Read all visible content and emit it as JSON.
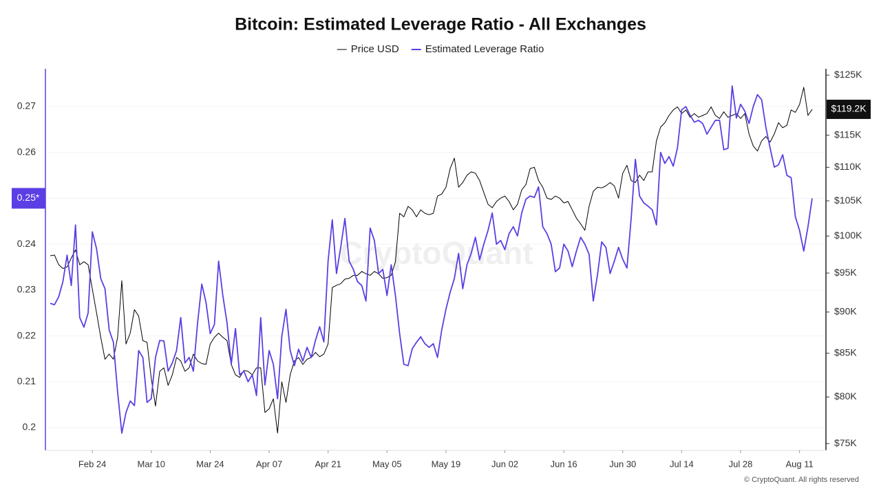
{
  "chart_data": {
    "type": "line",
    "title": "Bitcoin: Estimated Leverage Ratio - All Exchanges",
    "watermark": "CryptoQuant",
    "credit": "© CryptoQuant. All rights reserved",
    "categories": [
      null,
      null,
      null,
      null,
      null,
      null,
      null,
      null,
      null,
      null,
      "Feb 24",
      null,
      null,
      null,
      null,
      null,
      null,
      null,
      null,
      null,
      null,
      null,
      null,
      null,
      "Mar 10",
      null,
      null,
      null,
      null,
      null,
      null,
      null,
      null,
      null,
      null,
      null,
      null,
      null,
      "Mar 24",
      null,
      null,
      null,
      null,
      null,
      null,
      null,
      null,
      null,
      null,
      null,
      null,
      null,
      "Apr 07",
      null,
      null,
      null,
      null,
      null,
      null,
      null,
      null,
      null,
      null,
      null,
      null,
      null,
      "Apr 21",
      null,
      null,
      null,
      null,
      null,
      null,
      null,
      null,
      null,
      null,
      null,
      null,
      null,
      "May 05",
      null,
      null,
      null,
      null,
      null,
      null,
      null,
      null,
      null,
      null,
      null,
      null,
      null,
      "May 19",
      null,
      null,
      null,
      null,
      null,
      null,
      null,
      null,
      null,
      null,
      null,
      null,
      null,
      "Jun 02",
      null,
      null,
      null,
      null,
      null,
      null,
      null,
      null,
      null,
      null,
      null,
      null,
      null,
      "Jun 16",
      null,
      null,
      null,
      null,
      null,
      null,
      null,
      null,
      null,
      null,
      null,
      null,
      null,
      "Jun 30",
      null,
      null,
      null,
      null,
      null,
      null,
      null,
      null,
      null,
      null,
      null,
      null,
      null,
      "Jul 14",
      null,
      null,
      null,
      null,
      null,
      null,
      null,
      null,
      null,
      null,
      null,
      null,
      null,
      "Jul 28",
      null,
      null,
      null,
      null,
      null,
      null,
      null,
      null,
      null,
      null,
      null,
      null,
      null,
      "Aug 11",
      null,
      null,
      null
    ],
    "series": [
      {
        "name": "Price USD",
        "color": "#000000",
        "axis": "y2",
        "current_value": {
          "value": 119200,
          "label": "$119.2K"
        },
        "values": [
          97300,
          97400,
          96100,
          95600,
          95800,
          97000,
          98100,
          96100,
          96500,
          96100,
          92900,
          89900,
          86900,
          84300,
          84900,
          84300,
          86900,
          94000,
          86100,
          87400,
          90300,
          89500,
          86500,
          86300,
          82100,
          79000,
          82900,
          83300,
          81300,
          82500,
          84500,
          84100,
          82900,
          83300,
          84900,
          84100,
          83800,
          83700,
          86100,
          86900,
          87400,
          86900,
          86500,
          83700,
          82500,
          82200,
          83000,
          82900,
          82500,
          83300,
          83300,
          78300,
          78700,
          79800,
          76100,
          81700,
          79400,
          82500,
          84100,
          84500,
          83700,
          84300,
          84500,
          85100,
          84600,
          84900,
          86100,
          93100,
          93400,
          93600,
          94200,
          94300,
          94700,
          94700,
          95200,
          94900,
          94700,
          95200,
          94900,
          94300,
          94400,
          94700,
          96500,
          103200,
          102700,
          104200,
          103700,
          102700,
          103700,
          103200,
          103000,
          103200,
          105700,
          106000,
          107000,
          109800,
          111400,
          107000,
          107700,
          108800,
          109300,
          109100,
          108000,
          106200,
          104500,
          104000,
          104900,
          105400,
          105700,
          104900,
          103700,
          104500,
          106600,
          107400,
          109800,
          110000,
          108000,
          107000,
          105400,
          105200,
          105700,
          105400,
          104700,
          104900,
          103700,
          102500,
          101700,
          100800,
          104200,
          106400,
          107000,
          106900,
          107200,
          107700,
          107200,
          105400,
          109100,
          110300,
          108000,
          107700,
          108800,
          108000,
          109300,
          109300,
          114100,
          116300,
          117000,
          118200,
          119100,
          119600,
          118500,
          119100,
          117900,
          118500,
          117900,
          118200,
          118500,
          119600,
          118200,
          117700,
          118800,
          117900,
          118200,
          118500,
          117700,
          118500,
          115200,
          113300,
          112500,
          114100,
          114800,
          113900,
          115200,
          117000,
          116200,
          116600,
          119100,
          118700,
          120000,
          122900,
          118200,
          119200
        ]
      },
      {
        "name": "Estimated Leverage Ratio",
        "color": "#5b3ee4",
        "axis": "y",
        "current_value": {
          "value": 0.25,
          "label": "0.25*"
        },
        "values": [
          0.2271,
          0.2268,
          0.2285,
          0.2318,
          0.2376,
          0.231,
          0.2442,
          0.224,
          0.2219,
          0.225,
          0.2427,
          0.239,
          0.2325,
          0.2303,
          0.2213,
          0.2186,
          0.2078,
          0.1988,
          0.2033,
          0.2058,
          0.2048,
          0.2168,
          0.2153,
          0.2055,
          0.2063,
          0.2153,
          0.219,
          0.2189,
          0.2123,
          0.2141,
          0.2168,
          0.224,
          0.2141,
          0.2153,
          0.2123,
          0.2228,
          0.2313,
          0.2273,
          0.2205,
          0.2225,
          0.2363,
          0.2288,
          0.2228,
          0.2138,
          0.2216,
          0.2115,
          0.2123,
          0.21,
          0.2115,
          0.207,
          0.224,
          0.2093,
          0.2168,
          0.2138,
          0.2063,
          0.2198,
          0.2258,
          0.2168,
          0.2135,
          0.2171,
          0.2145,
          0.2175,
          0.2153,
          0.219,
          0.222,
          0.2187,
          0.2363,
          0.2453,
          0.2336,
          0.2393,
          0.2456,
          0.2363,
          0.2345,
          0.2318,
          0.231,
          0.2276,
          0.2435,
          0.2408,
          0.2336,
          0.2345,
          0.2288,
          0.2355,
          0.2288,
          0.2205,
          0.2138,
          0.2135,
          0.2172,
          0.2186,
          0.2198,
          0.2183,
          0.2175,
          0.2183,
          0.2153,
          0.2213,
          0.2258,
          0.2295,
          0.2325,
          0.238,
          0.2303,
          0.2355,
          0.238,
          0.2415,
          0.2366,
          0.24,
          0.243,
          0.2468,
          0.24,
          0.2408,
          0.2388,
          0.2423,
          0.2438,
          0.2418,
          0.2468,
          0.2498,
          0.2505,
          0.2502,
          0.2525,
          0.2438,
          0.2423,
          0.24,
          0.234,
          0.2348,
          0.24,
          0.2385,
          0.2351,
          0.2385,
          0.2415,
          0.24,
          0.2378,
          0.2276,
          0.2333,
          0.2405,
          0.2393,
          0.2336,
          0.2363,
          0.2393,
          0.2367,
          0.2348,
          0.2456,
          0.2585,
          0.2505,
          0.249,
          0.2483,
          0.2475,
          0.2442,
          0.26,
          0.2576,
          0.2591,
          0.257,
          0.261,
          0.2693,
          0.27,
          0.2681,
          0.2666,
          0.267,
          0.2663,
          0.264,
          0.2655,
          0.267,
          0.267,
          0.2606,
          0.2609,
          0.2745,
          0.2675,
          0.2705,
          0.269,
          0.2663,
          0.27,
          0.2726,
          0.2715,
          0.2655,
          0.261,
          0.2568,
          0.2573,
          0.2595,
          0.255,
          0.2545,
          0.246,
          0.243,
          0.2385,
          0.2438,
          0.25
        ]
      }
    ],
    "ylim": [
      0.19505,
      0.27825
    ],
    "yticks": [
      0.2,
      0.21,
      0.22,
      0.23,
      0.24,
      0.25,
      0.26,
      0.27
    ],
    "y2lim": [
      74300,
      126100
    ],
    "y2log": true,
    "y2ticks": [
      {
        "value": 75000,
        "label": "$75K"
      },
      {
        "value": 80000,
        "label": "$80K"
      },
      {
        "value": 85000,
        "label": "$85K"
      },
      {
        "value": 90000,
        "label": "$90K"
      },
      {
        "value": 95000,
        "label": "$95K"
      },
      {
        "value": 100000,
        "label": "$100K"
      },
      {
        "value": 105000,
        "label": "$105K"
      },
      {
        "value": 110000,
        "label": "$110K"
      },
      {
        "value": 115000,
        "label": "$115K"
      },
      {
        "value": 125000,
        "label": "$125K"
      }
    ],
    "grid": true
  }
}
